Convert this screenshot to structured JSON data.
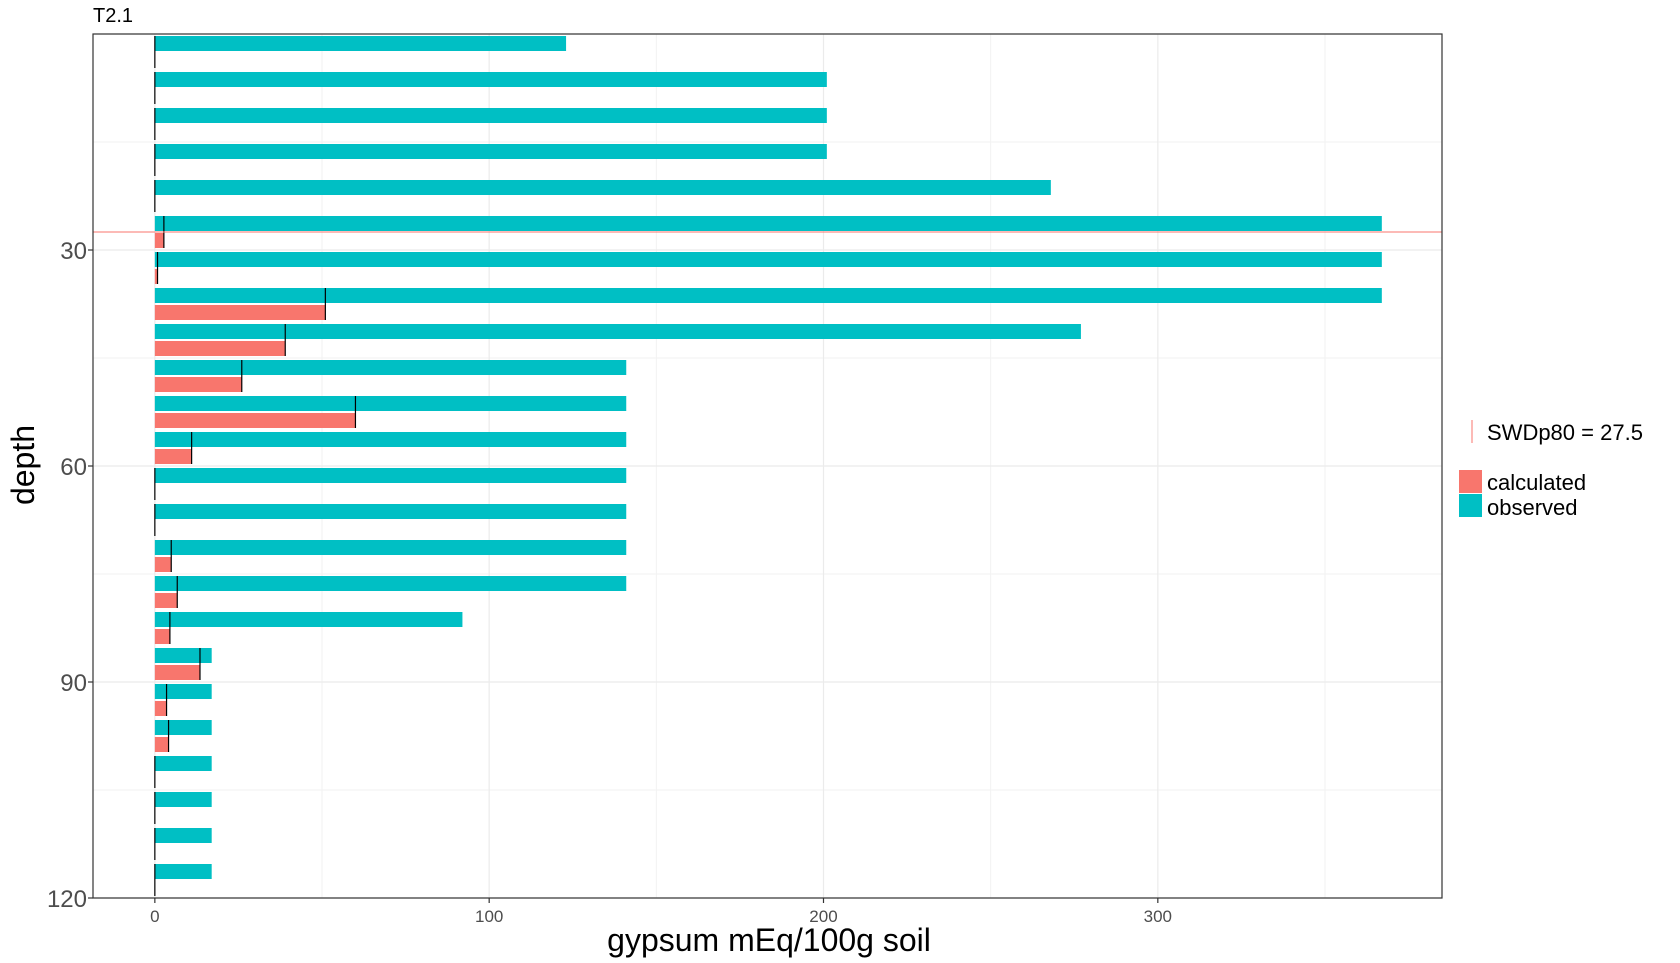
{
  "chart_data": {
    "type": "bar",
    "orientation": "horizontal",
    "panel_title": "T2.1",
    "xlabel": "gypsum mEq/100g soil",
    "ylabel": "depth",
    "xlim": [
      -18.5,
      385
    ],
    "ylim": [
      0,
      120
    ],
    "y_reversed": true,
    "x_ticks": [
      "0",
      "100",
      "200",
      "300"
    ],
    "y_ticks": [
      "30",
      "60",
      "90",
      "120"
    ],
    "x_tick_values": [
      0,
      100,
      200,
      300
    ],
    "y_tick_values": [
      30,
      60,
      90,
      120
    ],
    "grid": true,
    "legend_position": "right",
    "depths": [
      2.5,
      7.5,
      12.5,
      17.5,
      22.5,
      27.5,
      32.5,
      37.5,
      42.5,
      47.5,
      52.5,
      57.5,
      62.5,
      67.5,
      72.5,
      77.5,
      82.5,
      87.5,
      92.5,
      97.5,
      102.5,
      107.5,
      112.5,
      117.5
    ],
    "series": [
      {
        "name": "observed",
        "color": "#00BFC4",
        "values": [
          123,
          201,
          201,
          201,
          268,
          367,
          367,
          367,
          277,
          141,
          141,
          141,
          141,
          141,
          141,
          141,
          92,
          17,
          17,
          17,
          17,
          17,
          17,
          17
        ]
      },
      {
        "name": "calculated",
        "color": "#F8766D",
        "values": [
          0,
          0,
          0,
          0,
          0,
          2.7,
          0.8,
          51,
          39,
          26,
          60,
          11,
          0,
          0,
          4.9,
          6.7,
          4.5,
          13.5,
          3.5,
          4.1,
          0,
          0,
          0,
          0
        ]
      }
    ],
    "reference_line": {
      "label": "SWDp80 =  27.5",
      "y": 27.5,
      "color": "#F8766D"
    }
  }
}
